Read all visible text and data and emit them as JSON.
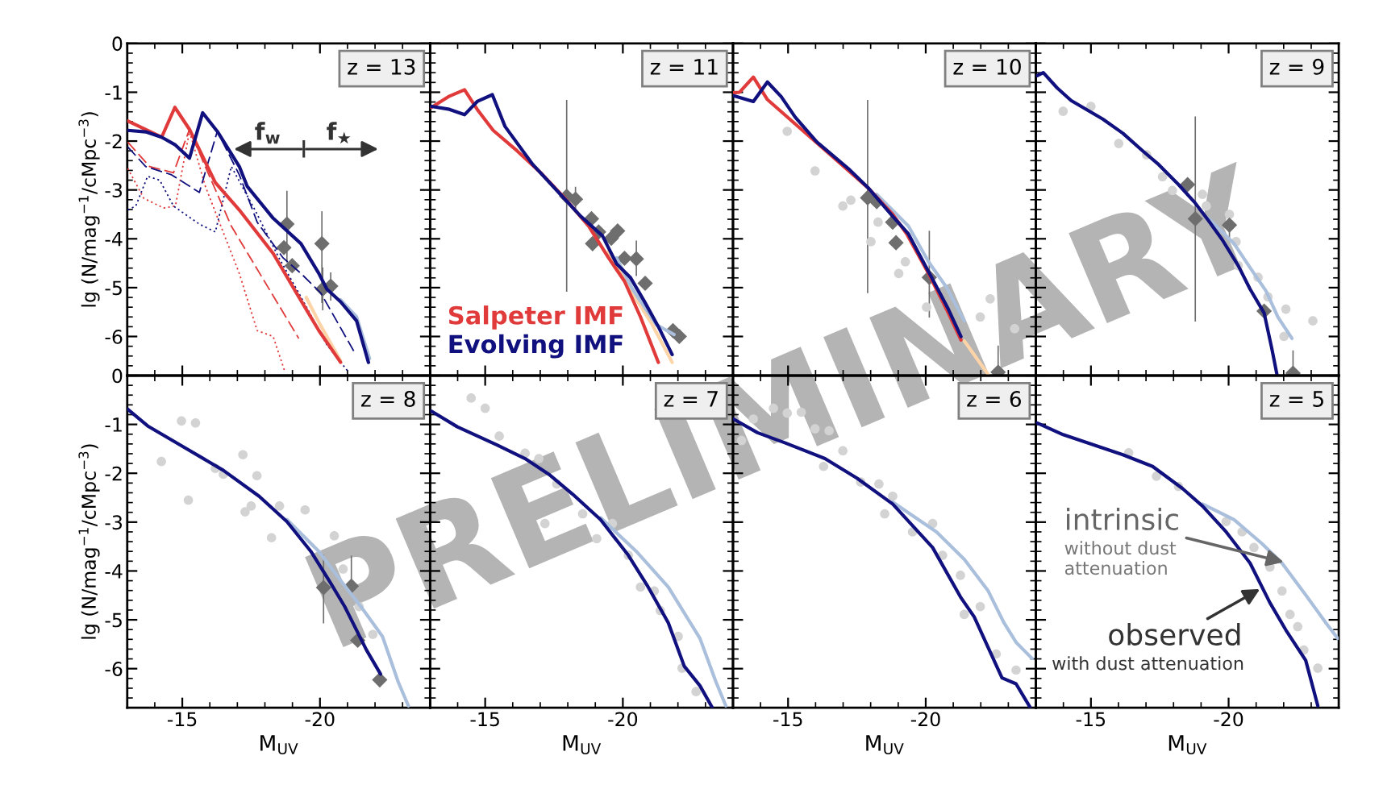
{
  "chart_data": [
    {
      "type": "line",
      "title": "z = 13",
      "ylabel": "lg (N/mag$^{−1}$/cMpc$^{−3}$)",
      "xlim": [
        -13,
        -24
      ],
      "ylim": [
        -6.8,
        0
      ],
      "xticks": [
        -15,
        -20
      ],
      "yticks": [
        0,
        -1,
        -2,
        -3,
        -4,
        -5,
        -6
      ],
      "tick_labels": "y",
      "series": [
        {
          "type": "line",
          "color": "#e03a3a",
          "line_style": "dashed",
          "x": [
            -13.02,
            -13.81,
            -14.68,
            -15.26,
            -15.77,
            -16.78,
            -19.23
          ],
          "values": [
            -2.02,
            -2.52,
            -2.65,
            -1.76,
            -2.44,
            -3.74,
            -6.04
          ]
        },
        {
          "type": "line",
          "color": "#e03a3a",
          "line_style": "dotted",
          "x": [
            -13.02,
            -13.6,
            -14.32,
            -14.75,
            -15.26,
            -15.84,
            -17.07,
            -17.72,
            -18.3,
            -18.73
          ],
          "values": [
            -2.56,
            -3.17,
            -3.37,
            -3.33,
            -1.8,
            -2.93,
            -4.71,
            -5.88,
            -6.0,
            -6.73
          ]
        },
        {
          "type": "line",
          "color": "#10107e",
          "line_style": "dashed",
          "x": [
            -13.02,
            -13.67,
            -14.61,
            -15.62,
            -16.27,
            -17.07,
            -17.72,
            -18.66,
            -19.31,
            -20.03,
            -21.26
          ],
          "values": [
            -2.12,
            -2.52,
            -2.69,
            -3.05,
            -1.8,
            -2.69,
            -3.66,
            -4.39,
            -4.71,
            -5.11,
            -6.33
          ]
        },
        {
          "type": "line",
          "color": "#10107e",
          "line_style": "dotted",
          "x": [
            -13.02,
            -13.31,
            -13.74,
            -14.18,
            -14.68,
            -15.62,
            -16.2,
            -16.78,
            -17.64,
            -18.51,
            -19.23,
            -20.25,
            -21.04
          ],
          "values": [
            -3.41,
            -3.33,
            -2.72,
            -2.8,
            -3.33,
            -3.7,
            -3.86,
            -2.52,
            -3.41,
            -4.39,
            -5.11,
            -6.17,
            -6.73
          ]
        },
        {
          "type": "line",
          "color": "#fdd4a8",
          "x": [
            -19.5,
            -20.0,
            -20.75
          ],
          "values": [
            -5.2,
            -5.75,
            -6.5
          ]
        },
        {
          "type": "line",
          "color": "#aabfdc",
          "x": [
            -20.75,
            -21.33,
            -21.8
          ],
          "values": [
            -5.25,
            -5.6,
            -6.45
          ]
        },
        {
          "type": "line",
          "color": "#e03a3a",
          "x": [
            -13.02,
            -14.25,
            -14.73,
            -15.26,
            -16.2,
            -17.07,
            -18.3,
            -19.23,
            -19.96,
            -20.75
          ],
          "values": [
            -1.59,
            -1.92,
            -1.31,
            -1.76,
            -2.85,
            -3.41,
            -4.3,
            -5.19,
            -5.88,
            -6.53
          ]
        },
        {
          "type": "line",
          "color": "#10107e",
          "x": [
            -13.02,
            -13.67,
            -14.25,
            -14.75,
            -15.26,
            -15.74,
            -16.27,
            -17.07,
            -17.36,
            -18.3,
            -19.31,
            -19.96,
            -20.25,
            -20.75,
            -21.33,
            -21.76
          ],
          "values": [
            -1.78,
            -1.81,
            -1.92,
            -2.08,
            -2.35,
            -1.42,
            -1.8,
            -2.52,
            -2.93,
            -3.58,
            -4.1,
            -4.71,
            -5.03,
            -5.29,
            -5.68,
            -6.53
          ]
        },
        {
          "type": "scatter",
          "color": "#6e6e6e",
          "marker": "diamond",
          "x": [
            -18.8,
            -18.69,
            -18.99,
            -20.07,
            -20.1,
            -20.39
          ],
          "values": [
            -3.7,
            -4.18,
            -4.55,
            -4.1,
            -5.03,
            -4.97
          ],
          "errors": [
            [
              -4.47,
              -3.03
            ],
            null,
            null,
            [
              -5.3,
              -3.45
            ],
            [
              -5.45,
              -4.6
            ],
            [
              -5.25,
              -4.7
            ]
          ]
        }
      ],
      "annotations": [
        "f$_{w}$",
        "f$_{★}$",
        "PRELIMINARY"
      ]
    },
    {
      "type": "line",
      "title": "z = 11",
      "xlim": [
        -13,
        -24
      ],
      "ylim": [
        -6.8,
        0
      ],
      "xticks": [
        -15,
        -20
      ],
      "yticks": [
        0,
        -1,
        -2,
        -3,
        -4,
        -5,
        -6
      ],
      "tick_labels": false,
      "legend": "bottom left",
      "series": [
        {
          "type": "line",
          "color": "#fdd4a8",
          "x": [
            -19.48,
            -20.35,
            -21.07,
            -21.79
          ],
          "values": [
            -4.26,
            -5.11,
            -5.76,
            -6.53
          ]
        },
        {
          "type": "line",
          "color": "#aabfdc",
          "x": [
            -19.77,
            -20.35,
            -21.22,
            -21.86
          ],
          "values": [
            -4.39,
            -5.03,
            -5.76,
            -5.96
          ]
        },
        {
          "type": "line",
          "name": "Salpeter IMF",
          "color": "#e03a3a",
          "x": [
            -13.05,
            -13.7,
            -14.25,
            -14.71,
            -15.29,
            -16.16,
            -17.02,
            -17.89,
            -18.76,
            -19.48,
            -20.06,
            -20.64,
            -21.29
          ],
          "values": [
            -1.31,
            -1.08,
            -0.95,
            -1.35,
            -1.78,
            -2.2,
            -2.65,
            -3.17,
            -3.74,
            -4.39,
            -4.87,
            -5.6,
            -6.53
          ]
        },
        {
          "type": "line",
          "name": "Evolving IMF",
          "color": "#10107e",
          "x": [
            -13.05,
            -13.7,
            -14.25,
            -14.71,
            -15.26,
            -15.72,
            -16.73,
            -17.6,
            -18.47,
            -19.26,
            -19.77,
            -20.27,
            -20.78,
            -21.29,
            -21.79
          ],
          "values": [
            -1.29,
            -1.35,
            -1.46,
            -1.19,
            -1.05,
            -1.7,
            -2.48,
            -3.01,
            -3.54,
            -3.94,
            -4.51,
            -4.79,
            -5.28,
            -5.8,
            -6.37
          ]
        },
        {
          "type": "scatter",
          "color": "#6e6e6e",
          "marker": "diamond",
          "x": [
            -17.96,
            -18.28,
            -18.86,
            -18.9,
            -19.12,
            -19.58,
            -19.81,
            -20.06,
            -20.49,
            -20.81,
            -21.82,
            -22.05
          ],
          "values": [
            -3.13,
            -3.19,
            -3.59,
            -4.1,
            -3.86,
            -3.99,
            -3.84,
            -4.4,
            -4.41,
            -4.91,
            -5.88,
            -6.0
          ],
          "errors": [
            [
              -5.07,
              -1.17
            ],
            [
              -3.45,
              -2.95
            ],
            null,
            null,
            null,
            null,
            null,
            null,
            [
              -4.75,
              -4.05
            ],
            null,
            null,
            null
          ]
        }
      ]
    },
    {
      "type": "line",
      "title": "z = 10",
      "xlim": [
        -13,
        -24
      ],
      "ylim": [
        -6.8,
        0
      ],
      "xticks": [
        -15,
        -20
      ],
      "yticks": [
        0,
        -1,
        -2,
        -3,
        -4,
        -5,
        -6
      ],
      "tick_labels": false,
      "series": [
        {
          "type": "scatter",
          "color": "#d3d3d3",
          "marker": "circle",
          "x": [
            -14.97,
            -15.98,
            -16.99,
            -17.28,
            -18.01,
            -18.27,
            -19.02,
            -19.26,
            -20.03,
            -20.25,
            -20.97,
            -21.26,
            -21.98,
            -22.34,
            -23.23
          ],
          "values": [
            -1.8,
            -2.61,
            -3.33,
            -3.21,
            -4.06,
            -3.66,
            -4.71,
            -4.47,
            -5.4,
            null,
            null,
            null,
            -5.6,
            -5.23,
            -5.84
          ]
        },
        {
          "type": "line",
          "color": "#fdd4a8",
          "x": [
            -21.4,
            -22.27
          ],
          "values": [
            -6.09,
            -6.78
          ]
        },
        {
          "type": "line",
          "color": "#aabfdc",
          "x": [
            -18.22,
            -19.37,
            -20.1,
            -20.75,
            -21.4
          ],
          "values": [
            -3.09,
            -3.74,
            -4.47,
            -4.99,
            -5.68
          ]
        },
        {
          "type": "line",
          "color": "#e03a3a",
          "x": [
            -13.02,
            -13.24,
            -13.74,
            -14.25,
            -14.9,
            -16.05,
            -17.2,
            -17.93,
            -18.8,
            -19.31,
            -20.1,
            -20.82,
            -21.28
          ],
          "values": [
            -1.01,
            -1.0,
            -0.69,
            -1.15,
            -1.47,
            -2.04,
            -2.61,
            -2.97,
            -3.5,
            -3.9,
            -4.71,
            -5.52,
            -6.07
          ]
        },
        {
          "type": "line",
          "color": "#10107e",
          "x": [
            -13.02,
            -13.74,
            -14.25,
            -14.75,
            -15.26,
            -16.05,
            -17.2,
            -17.93,
            -18.8,
            -19.37,
            -20.1,
            -20.82,
            -21.28
          ],
          "values": [
            -1.07,
            -1.19,
            -0.79,
            -1.09,
            -1.51,
            -2.02,
            -2.57,
            -2.97,
            -3.54,
            -3.9,
            -4.67,
            -5.44,
            -6.0
          ]
        },
        {
          "type": "scatter",
          "color": "#6e6e6e",
          "marker": "diamond",
          "x": [
            -17.89,
            -18.22,
            -18.8,
            -18.92,
            -19.45,
            -20.13,
            -22.63
          ],
          "values": [
            -3.16,
            -3.24,
            -3.66,
            -4.08,
            null,
            -4.79,
            -6.73
          ],
          "errors": [
            [
              -5.1,
              -1.17
            ],
            null,
            null,
            null,
            null,
            [
              -5.6,
              -3.85
            ],
            [
              -6.8,
              -6.2
            ]
          ]
        }
      ]
    },
    {
      "type": "line",
      "title": "z = 9",
      "xlim": [
        -13,
        -24
      ],
      "ylim": [
        -6.8,
        0
      ],
      "xticks": [
        -15,
        -20
      ],
      "yticks": [
        0,
        -1,
        -2,
        -3,
        -4,
        -5,
        -6
      ],
      "tick_labels": false,
      "series": [
        {
          "type": "scatter",
          "color": "#d3d3d3",
          "marker": "circle",
          "x": [
            -13.99,
            -15.0,
            -16.01,
            -17.02,
            -17.6,
            -17.96,
            -19.05,
            -19.19,
            -20.03,
            -20.27,
            -20.35,
            -21.07,
            -21.43,
            -22.08,
            -22.01,
            -23.06
          ],
          "values": [
            -1.39,
            -1.29,
            -2.05,
            -2.28,
            -2.73,
            -3.01,
            -3.09,
            -3.33,
            -3.5,
            -4.06,
            -4.55,
            -4.79,
            -5.19,
            -5.44,
            -6.0,
            -5.68
          ]
        },
        {
          "type": "line",
          "color": "#aabfdc",
          "x": [
            -19.26,
            -20.2,
            -20.78,
            -21.36,
            -21.79,
            -22.3
          ],
          "values": [
            -3.58,
            -4.1,
            -4.59,
            -5.07,
            -5.6,
            -6.04
          ]
        },
        {
          "type": "line",
          "color": "#10107e",
          "x": [
            -13.05,
            -13.27,
            -13.77,
            -14.28,
            -15.43,
            -16.16,
            -16.88,
            -17.46,
            -18.18,
            -18.76,
            -19.26,
            -19.77,
            -20.35,
            -20.78,
            -21.29,
            -21.57,
            -21.76
          ],
          "values": [
            -0.66,
            -0.6,
            -0.91,
            -1.17,
            -1.55,
            -1.84,
            -2.2,
            -2.48,
            -2.89,
            -3.25,
            -3.62,
            -4.02,
            -4.55,
            -5.03,
            -5.52,
            -6.25,
            -6.79
          ]
        },
        {
          "type": "scatter",
          "color": "#6e6e6e",
          "marker": "diamond",
          "x": [
            -18.51,
            -18.79,
            -20.03,
            -21.29,
            -22.34
          ],
          "values": [
            -2.89,
            -3.59,
            -3.72,
            -5.48,
            -6.75
          ],
          "errors": [
            null,
            [
              -5.68,
              -1.51
            ],
            [
              -4.0,
              -3.45
            ],
            null,
            [
              -6.8,
              -6.3
            ]
          ]
        }
      ]
    },
    {
      "type": "line",
      "title": "z = 8",
      "xlabel": "M$_{UV}$",
      "ylabel": "lg (N/mag$^{−1}$/cMpc$^{−3}$)",
      "xlim": [
        -13,
        -24
      ],
      "ylim": [
        -6.8,
        0
      ],
      "xticks": [
        -15,
        -20
      ],
      "yticks": [
        0,
        -1,
        -2,
        -3,
        -4,
        -5,
        -6
      ],
      "series": [
        {
          "type": "scatter",
          "color": "#d3d3d3",
          "marker": "circle",
          "x": [
            -14.24,
            -14.97,
            -15.48,
            -15.22,
            -16.2,
            -16.49,
            -17.2,
            -17.71,
            -17.28,
            -17.5,
            -18.53,
            -18.24,
            -19.46,
            -20.52,
            -20.84,
            -21.42,
            -21.92
          ],
          "values": [
            -1.76,
            -0.93,
            -0.97,
            -2.55,
            -1.9,
            -2.02,
            -1.62,
            -2.05,
            -2.79,
            -2.67,
            -2.67,
            -3.32,
            -2.75,
            -3.28,
            -3.96,
            -4.73,
            -5.3
          ]
        },
        {
          "type": "line",
          "color": "#aabfdc",
          "x": [
            -18.8,
            -19.96,
            -20.82,
            -21.54,
            -22.27,
            -22.84,
            -23.21
          ],
          "values": [
            -2.95,
            -3.6,
            -4.25,
            -4.77,
            -5.34,
            -6.27,
            -6.76
          ]
        },
        {
          "type": "line",
          "color": "#10107e",
          "x": [
            -13.02,
            -13.74,
            -15.04,
            -16.49,
            -17.79,
            -18.8,
            -19.67,
            -20.39,
            -20.9,
            -21.69,
            -22.2
          ],
          "values": [
            -0.69,
            -1.03,
            -1.46,
            -1.94,
            -2.47,
            -2.99,
            -3.6,
            -4.25,
            -4.73,
            -5.62,
            -6.11
          ]
        },
        {
          "type": "scatter",
          "color": "#6e6e6e",
          "marker": "diamond",
          "x": [
            -20.13,
            -21.14,
            -21.37,
            -22.17
          ],
          "values": [
            -4.34,
            -4.31,
            -5.42,
            -6.23
          ],
          "errors": [
            [
              -5.06,
              -3.68
            ],
            [
              -4.5,
              -3.7
            ],
            null,
            null
          ]
        }
      ]
    },
    {
      "type": "line",
      "title": "z = 7",
      "xlabel": "M$_{UV}$",
      "xlim": [
        -13,
        -24
      ],
      "ylim": [
        -6.8,
        0
      ],
      "xticks": [
        -15,
        -20
      ],
      "yticks": [
        0,
        -1,
        -2,
        -3,
        -4,
        -5,
        -6
      ],
      "tick_labels": "x",
      "series": [
        {
          "type": "scatter",
          "color": "#d3d3d3",
          "marker": "circle",
          "x": [
            -14.49,
            -15.0,
            -15.51,
            -16.45,
            -16.95,
            -17.6,
            -17.17,
            -18.54,
            -19.05,
            -19.62,
            -20.2,
            -20.64,
            -21.14,
            -21.36,
            -22.01,
            -22.15,
            -22.66
          ],
          "values": [
            -0.46,
            -0.67,
            -1.24,
            -1.59,
            -1.7,
            -2.22,
            -3.03,
            -2.83,
            -3.34,
            -3.03,
            -3.68,
            -4.33,
            -4.41,
            -4.81,
            -5.34,
            -5.99,
            -6.47
          ]
        },
        {
          "type": "line",
          "color": "#aabfdc",
          "x": [
            -19.19,
            -20.49,
            -21.65,
            -22.8,
            -23.38,
            -23.74
          ],
          "values": [
            -2.91,
            -3.6,
            -4.33,
            -5.38,
            -6.27,
            -6.76
          ]
        },
        {
          "type": "line",
          "color": "#10107e",
          "x": [
            -13.05,
            -13.99,
            -15.43,
            -16.45,
            -17.31,
            -18.18,
            -19.19,
            -20.2,
            -20.92,
            -21.65,
            -22.23,
            -22.8,
            -23.24
          ],
          "values": [
            -0.73,
            -1.05,
            -1.42,
            -1.7,
            -2.02,
            -2.43,
            -2.95,
            -3.68,
            -4.33,
            -5.06,
            -5.95,
            -6.35,
            -6.79
          ]
        }
      ]
    },
    {
      "type": "line",
      "title": "z = 6",
      "xlabel": "M$_{UV}$",
      "xlim": [
        -13,
        -24
      ],
      "ylim": [
        -6.8,
        0
      ],
      "xticks": [
        -15,
        -20
      ],
      "yticks": [
        0,
        -1,
        -2,
        -3,
        -4,
        -5,
        -6
      ],
      "tick_labels": "x",
      "series": [
        {
          "type": "scatter",
          "color": "#d3d3d3",
          "marker": "circle",
          "x": [
            -13.31,
            -13.74,
            -14.47,
            -14.97,
            -15.48,
            -15.98,
            -16.49,
            -16.99,
            -16.29,
            -17.64,
            -18.3,
            -18.51,
            -18.8,
            -19.52,
            -20.25,
            -20.61,
            -21.26,
            -21.4,
            -21.98,
            -22.56,
            -23.28
          ],
          "values": [
            -1.33,
            -0.89,
            -0.67,
            -0.77,
            -0.75,
            -1.09,
            -1.13,
            -1.54,
            -1.86,
            -2.18,
            -2.22,
            -2.83,
            -2.47,
            -3.2,
            -3.03,
            -3.68,
            -4.09,
            -4.89,
            -4.73,
            -5.7,
            -6.03
          ]
        },
        {
          "type": "line",
          "color": "#aabfdc",
          "x": [
            -18.8,
            -20.39,
            -21.4,
            -22.27,
            -22.84,
            -23.28,
            -23.86
          ],
          "values": [
            -2.59,
            -3.2,
            -3.76,
            -4.41,
            -5.06,
            -5.46,
            -5.79
          ]
        },
        {
          "type": "line",
          "color": "#10107e",
          "x": [
            -13.02,
            -13.89,
            -14.9,
            -16.34,
            -17.5,
            -18.8,
            -20.25,
            -21.26,
            -21.76,
            -22.77,
            -23.28,
            -23.79
          ],
          "values": [
            -0.89,
            -1.17,
            -1.38,
            -1.7,
            -2.1,
            -2.63,
            -3.52,
            -4.53,
            -4.94,
            -6.19,
            -6.31,
            -6.79
          ]
        }
      ]
    },
    {
      "type": "line",
      "title": "z = 5",
      "xlabel": "M$_{UV}$",
      "xlim": [
        -13,
        -24
      ],
      "ylim": [
        -6.8,
        0
      ],
      "xticks": [
        -15,
        -20
      ],
      "yticks": [
        0,
        -1,
        -2,
        -3,
        -4,
        -5,
        -6
      ],
      "tick_labels": "x",
      "series": [
        {
          "type": "scatter",
          "color": "#d3d3d3",
          "marker": "circle",
          "x": [
            -16.37,
            -17.38,
            -18.18,
            -19.05,
            -19.91,
            -20.49,
            -20.92,
            -21.5,
            -21.94,
            -22.23,
            -22.51,
            -22.73,
            -23.24
          ],
          "values": [
            -1.58,
            -2.06,
            -2.27,
            null,
            -2.99,
            -3.2,
            -3.52,
            -3.92,
            -4.41,
            -4.89,
            -5.14,
            -5.62,
            -5.99
          ]
        },
        {
          "type": "line",
          "color": "#aabfdc",
          "x": [
            -19.05,
            -20.2,
            -21.21,
            -21.94,
            -22.8,
            -23.53,
            -23.96
          ],
          "values": [
            -2.63,
            -2.95,
            -3.44,
            -3.84,
            -4.49,
            -5.06,
            -5.38
          ]
        },
        {
          "type": "line",
          "color": "#10107e",
          "x": [
            -13.05,
            -13.99,
            -16.16,
            -17.24,
            -18.32,
            -19.05,
            -19.91,
            -20.78,
            -21.5,
            -22.08,
            -22.8,
            -23.24
          ],
          "values": [
            -0.97,
            -1.21,
            -1.62,
            -1.86,
            -2.31,
            -2.67,
            -3.2,
            -3.84,
            -4.65,
            -5.21,
            -5.83,
            -6.76
          ]
        }
      ],
      "annotations": [
        {
          "text": "intrinsic",
          "x": -22.0,
          "y": -3.82
        },
        "without dust\nattenuation",
        {
          "text": "observed",
          "x": -21.14,
          "y": -4.37
        },
        "with dust attenuation"
      ]
    }
  ]
}
